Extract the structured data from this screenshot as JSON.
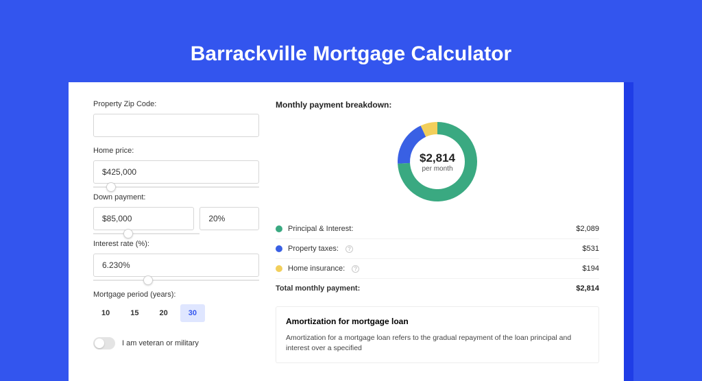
{
  "page": {
    "title": "Barrackville Mortgage Calculator"
  },
  "colors": {
    "page_bg": "#3355ee",
    "card_bg": "#ffffff",
    "green": "#3aa981",
    "blue": "#3960e4",
    "yellow": "#f2cf5b"
  },
  "form": {
    "zip": {
      "label": "Property Zip Code:",
      "value": ""
    },
    "home_price": {
      "label": "Home price:",
      "value": "$425,000",
      "slider_pos_pct": 8
    },
    "down_payment": {
      "label": "Down payment:",
      "amount": "$85,000",
      "percent": "20%",
      "slider_pos_pct": 18
    },
    "interest": {
      "label": "Interest rate (%):",
      "value": "6.230%",
      "slider_pos_pct": 30
    },
    "period": {
      "label": "Mortgage period (years):",
      "options": [
        "10",
        "15",
        "20",
        "30"
      ],
      "selected_index": 3
    },
    "veteran": {
      "label": "I am veteran or military",
      "on": false
    }
  },
  "breakdown": {
    "title": "Monthly payment breakdown:",
    "donut": {
      "amount": "$2,814",
      "sub": "per month",
      "ring_width": 18,
      "slices": [
        {
          "key": "pi",
          "value": 2089,
          "color": "#3aa981"
        },
        {
          "key": "tax",
          "value": 531,
          "color": "#3960e4"
        },
        {
          "key": "ins",
          "value": 194,
          "color": "#f2cf5b"
        }
      ]
    },
    "items": [
      {
        "label": "Principal & Interest:",
        "value": "$2,089",
        "color": "#3aa981",
        "info": false
      },
      {
        "label": "Property taxes:",
        "value": "$531",
        "color": "#3960e4",
        "info": true
      },
      {
        "label": "Home insurance:",
        "value": "$194",
        "color": "#f2cf5b",
        "info": true
      }
    ],
    "total": {
      "label": "Total monthly payment:",
      "value": "$2,814"
    }
  },
  "amortization": {
    "title": "Amortization for mortgage loan",
    "text": "Amortization for a mortgage loan refers to the gradual repayment of the loan principal and interest over a specified"
  }
}
